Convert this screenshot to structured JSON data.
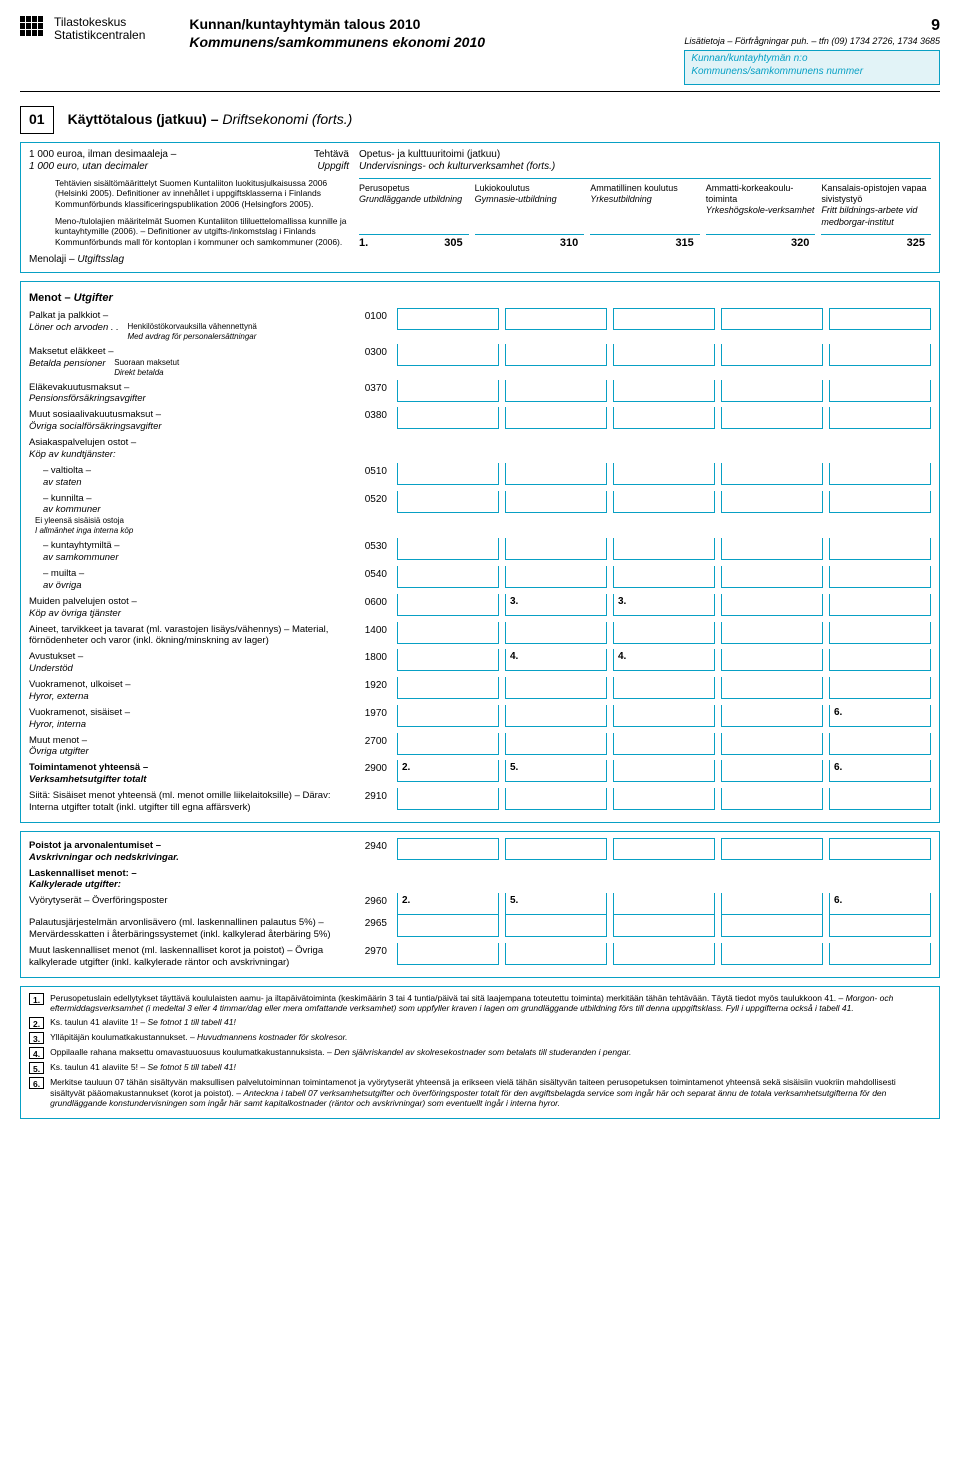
{
  "page_number": "9",
  "org_fi": "Tilastokeskus",
  "org_sv": "Statistikcentralen",
  "title_fi": "Kunnan/kuntayhtymän talous 2010",
  "title_sv": "Kommunens/samkommunens ekonomi 2010",
  "hdr_info": "Lisätietoja – Förfrågningar puh. – tfn (09) 1734 2726, 1734 3685",
  "kbox1": "Kunnan/kuntayhtymän n:o",
  "kbox2": "Kommunens/samkommunens nummer",
  "sect_num": "01",
  "sect_title_fi": "Käyttötalous (jatkuu) – ",
  "sect_title_sv": "Driftsekonomi (forts.)",
  "euro_fi": "1 000 euroa, ilman desimaaleja –",
  "euro_sv": "1 000 euro, utan decimaler",
  "tehtava_fi": "Tehtävä",
  "tehtava_sv": "Uppgift",
  "note1": "Tehtävien sisältömäärittelyt Suomen Kuntaliiton luokitusjulkaisussa 2006 (Helsinki 2005). Definitioner av innehållet i uppgiftsklasserna i Finlands Kommunförbunds klassificeringspublikation 2006 (Helsingfors 2005).",
  "note2": "Meno-/tulolajien määritelmät Suomen Kuntaliiton tililuettelomallissa kunnille ja kuntayhtymille (2006). – Definitioner av utgifts-/inkomstslag i Finlands Kommunförbunds mall för kontoplan i kommuner och samkommuner (2006).",
  "menolaji_fi": "Menolaji –",
  "menolaji_sv": "Utgiftsslag",
  "colgroup_fi": "Opetus- ja kulttuuritoimi (jatkuu)",
  "colgroup_sv": "Undervisnings- och kulturverksamhet (forts.)",
  "columns": [
    {
      "fi": "Perusopetus",
      "sv": "Grundläggande utbildning",
      "num": "305",
      "fn": "1."
    },
    {
      "fi": "Lukiokoulutus",
      "sv": "Gymnasie-utbildning",
      "num": "310",
      "fn": ""
    },
    {
      "fi": "Ammatillinen koulutus",
      "sv": "Yrkesutbildning",
      "num": "315",
      "fn": ""
    },
    {
      "fi": "Ammatti-korkeakoulu-toiminta",
      "sv": "Yrkeshögskole-verksamhet",
      "num": "320",
      "fn": ""
    },
    {
      "fi": "Kansalais-opistojen vapaa sivistystyö",
      "sv": "Fritt bildnings-arbete vid medborgar-institut",
      "num": "325",
      "fn": ""
    }
  ],
  "menot_head_fi": "Menot – ",
  "menot_head_sv": "Utgifter",
  "rows_main": [
    {
      "label_fi": "Palkat ja palkkiot –",
      "label_sv": "Löner och arvoden . .",
      "side": "Henkilöstökorvauksilla vähennettynä<br><i>Med avdrag för personalersättningar</i>",
      "code": "0100"
    },
    {
      "label_fi": "Maksetut eläkkeet –",
      "label_sv": "Betalda pensioner",
      "side": "Suoraan maksetut<br><i>Direkt betalda</i>",
      "code": "0300"
    },
    {
      "label_fi": "Eläkevakuutusmaksut –",
      "label_sv": "Pensionsförsäkringsavgifter",
      "code": "0370"
    },
    {
      "label_fi": "Muut sosiaalivakuutusmaksut –",
      "label_sv": "Övriga socialförsäkringsavgifter",
      "code": "0380"
    },
    {
      "label_fi": "Asiakaspalvelujen ostot –",
      "label_sv": "Köp av kundtjänster:",
      "code": "",
      "nocell": true
    },
    {
      "label_fi": "– valtiolta –",
      "label_sv": "av staten",
      "sub": true,
      "code": "0510"
    },
    {
      "label_fi": "– kunnilta –",
      "label_sv": "av kommuner",
      "sub": true,
      "side2": "Ei yleensä sisäisiä ostoja<br><i>I allmänhet inga interna köp</i>",
      "code": "0520"
    },
    {
      "label_fi": "– kuntayhtymiltä –",
      "label_sv": "av samkommuner",
      "sub": true,
      "code": "0530"
    },
    {
      "label_fi": "– muilta –",
      "label_sv": "av övriga",
      "sub": true,
      "code": "0540"
    },
    {
      "label_fi": "Muiden palvelujen ostot –",
      "label_sv": "Köp av övriga tjänster",
      "code": "0600",
      "marks": {
        "1": "3.",
        "2": "3."
      }
    },
    {
      "label_fi": "Aineet, tarvikkeet ja tavarat (ml. varastojen lisäys/vähennys) – Material, förnödenheter och varor (inkl. ökning/minskning av lager)",
      "label_sv": "",
      "code": "1400"
    },
    {
      "label_fi": "Avustukset –",
      "label_sv": "Understöd",
      "code": "1800",
      "marks": {
        "1": "4.",
        "2": "4."
      }
    },
    {
      "label_fi": "Vuokramenot, ulkoiset –",
      "label_sv": "Hyror, externa",
      "code": "1920"
    },
    {
      "label_fi": "Vuokramenot, sisäiset –",
      "label_sv": "Hyror, interna",
      "code": "1970",
      "marks": {
        "4": "6."
      }
    },
    {
      "label_fi": "Muut menot –",
      "label_sv": "Övriga utgifter",
      "code": "2700"
    },
    {
      "label_fi": "Toimintamenot yhteensä –",
      "label_sv": "Verksamhetsutgifter totalt",
      "bold": true,
      "code": "2900",
      "marks": {
        "0": "2.",
        "1": "5.",
        "4": "6."
      }
    },
    {
      "label_fi": "Siitä: Sisäiset menot yhteensä (ml. menot omille liikelaitoksille) – Därav: Interna utgifter totalt (inkl. utgifter till egna affärsverk)",
      "label_sv": "",
      "code": "2910"
    }
  ],
  "rows_poistot": [
    {
      "label_fi": "Poistot ja arvonalentumiset –",
      "label_sv": "Avskrivningar och nedskrivingar.",
      "bold": true,
      "code": "2940"
    },
    {
      "label_fi": "Laskennalliset menot: –",
      "label_sv": "Kalkylerade utgifter:",
      "bold": true,
      "code": "",
      "nocell": true
    },
    {
      "label_fi": "Vyörytyserät – Överföringsposter",
      "label_sv": "",
      "code": "2960",
      "marks": {
        "0": "2.",
        "1": "5.",
        "4": "6."
      }
    },
    {
      "label_fi": "Palautusjärjestelmän arvonlisävero (ml. laskennallinen palautus 5%) – Mervärdesskatten i återbäringssystemet (inkl. kalkylerad återbäring 5%)",
      "label_sv": "",
      "code": "2965"
    },
    {
      "label_fi": "Muut laskennalliset menot (ml. laskennalliset korot ja poistot) – Övriga kalkylerade utgifter (inkl. kalkylerade räntor och avskrivningar)",
      "label_sv": "",
      "code": "2970"
    }
  ],
  "footnotes": [
    {
      "n": "1.",
      "txt": "Perusopetuslain edellytykset täyttävä koululaisten aamu- ja iltapäivätoiminta (keskimäärin 3 tai 4 tuntia/päivä tai sitä laajempana toteutettu toiminta) merkitään tähän tehtävään. Täytä tiedot myös taulukkoon 41. – <i>Morgon- och eftermiddagsverksamhet (i medeltal 3 eller 4 timmar/dag eller mera omfattande verksamhet) som uppfyller kraven i lagen om grundläggande utbildning förs till denna uppgiftsklass. Fyll i uppgifterna också i tabell 41.</i>"
    },
    {
      "n": "2.",
      "txt": "Ks. taulun 41 alaviite 1! – <i>Se fotnot 1 till tabell 41!</i>"
    },
    {
      "n": "3.",
      "txt": "Ylläpitäjän koulumatkakustannukset. – <i>Huvudmannens kostnader för skolresor.</i>"
    },
    {
      "n": "4.",
      "txt": "Oppilaalle rahana maksettu omavastuuosuus koulumatkakustannuksista. – <i>Den självriskandel av skolresekostnader som betalats till studeranden i pengar.</i>"
    },
    {
      "n": "5.",
      "txt": "Ks. taulun 41 alaviite 5! – <i>Se fotnot 5 till tabell 41!</i>"
    },
    {
      "n": "6.",
      "txt": "Merkitse tauluun 07 tähän sisältyvän maksullisen palvelutoiminnan toimintamenot ja vyörytyserät yhteensä ja erikseen vielä tähän sisältyvän taiteen perusopetuksen toimintamenot yhteensä sekä sisäisiin vuokriin mahdollisesti sisältyvät pääomakustannukset (korot ja poistot). – <i>Anteckna i tabell 07 verksamhetsutgifter och överföringsposter totalt för den avgiftsbelagda service som ingår här och separat ännu de totala verksamhetsutgifterna för den grundläggande konstundervisningen som ingår här samt kapitalkostnader (räntor och avskrivningar) som eventuellt ingår i interna hyror.</i>"
    }
  ]
}
